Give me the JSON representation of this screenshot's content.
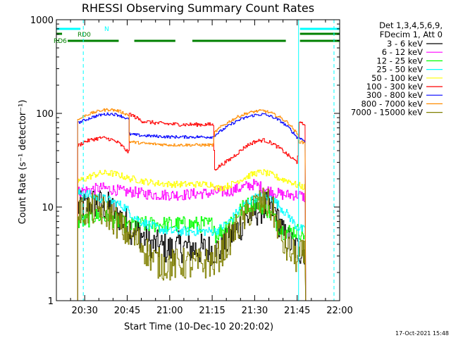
{
  "chart_data": {
    "type": "line",
    "title": "RHESSI Observing Summary Count Rates",
    "xlabel": "Start Time (10-Dec-10 20:20:02)",
    "ylabel": "Count Rate (s⁻¹ detector⁻¹)",
    "yscale": "log",
    "ylim": [
      1,
      1000
    ],
    "xlim_minutes": [
      0,
      100
    ],
    "x_ticks": [
      {
        "label": "20:30",
        "minute": 10
      },
      {
        "label": "20:45",
        "minute": 25
      },
      {
        "label": "21:00",
        "minute": 40
      },
      {
        "label": "21:15",
        "minute": 55
      },
      {
        "label": "21:30",
        "minute": 70
      },
      {
        "label": "21:45",
        "minute": 85
      },
      {
        "label": "22:00",
        "minute": 100
      }
    ],
    "y_ticks": [
      {
        "label": "1",
        "value": 1
      },
      {
        "label": "10",
        "value": 10
      },
      {
        "label": "100",
        "value": 100
      },
      {
        "label": "1000",
        "value": 1000
      }
    ],
    "legend_header": [
      "Det 1,3,4,5,6,9,",
      "FDecim 1, Att 0"
    ],
    "legend_position": "right",
    "series": [
      {
        "name": "3 - 6 keV",
        "color": "#000000",
        "x": [
          7.5,
          10,
          13,
          16,
          18,
          20,
          22,
          24,
          26,
          28,
          30,
          33,
          36,
          40,
          44,
          48,
          52,
          55.5,
          58,
          62,
          66,
          70,
          73,
          75,
          77,
          78,
          80,
          83,
          85,
          85.6,
          88
        ],
        "y": [
          10,
          10,
          11,
          10.5,
          10,
          9,
          8,
          7,
          6,
          5.5,
          5,
          4,
          3.8,
          3.5,
          3.8,
          3.6,
          3.5,
          3.5,
          3.5,
          5,
          7,
          9,
          10,
          10,
          9,
          8,
          5,
          4,
          3.5,
          3.5,
          3.5
        ],
        "noise": 0.35
      },
      {
        "name": "6 - 12 keV",
        "color": "#ff00ff",
        "x": [
          7.5,
          10,
          13,
          16,
          19,
          22,
          24,
          25.5,
          27,
          30,
          35,
          40,
          45,
          50,
          55.5,
          56,
          60,
          65,
          68,
          70,
          72,
          75,
          78,
          80,
          82,
          85,
          85.6,
          88
        ],
        "y": [
          14.5,
          15,
          15.5,
          16,
          15.5,
          15,
          14.5,
          14.5,
          14.5,
          14,
          13.5,
          13.5,
          13.5,
          14,
          14,
          14.5,
          14.5,
          16,
          17,
          17.5,
          16.5,
          15,
          14,
          13.5,
          13.5,
          13.5,
          13.5,
          12.5
        ],
        "noise": 0.12
      },
      {
        "name": "12 - 25 keV",
        "color": "#00ff00",
        "x": [
          7.5,
          10,
          13,
          16,
          19,
          22,
          24,
          25.5,
          27,
          30,
          35,
          40,
          45,
          50,
          55.5,
          56,
          58,
          60,
          63,
          66,
          69,
          71,
          73,
          75,
          78,
          80,
          82,
          85,
          85.6,
          88
        ],
        "y": [
          7,
          7,
          8,
          8,
          7.5,
          7,
          6.5,
          6,
          6.5,
          6.5,
          6.5,
          6.5,
          6.5,
          6.5,
          6.5,
          5,
          5.5,
          6.5,
          8,
          10,
          11,
          11,
          10,
          9,
          6.5,
          5.5,
          5.5,
          5.5,
          5.5,
          5
        ],
        "noise": 0.18
      },
      {
        "name": "25 - 50 keV",
        "color": "#00ffff",
        "x": [
          7.5,
          10,
          13,
          15,
          18,
          21,
          24,
          25.5,
          27,
          30,
          35,
          40,
          45,
          50,
          55.5,
          56,
          58,
          61,
          64,
          67,
          70,
          73,
          76,
          79,
          82,
          85,
          85.6,
          88
        ],
        "y": [
          14,
          14,
          13,
          12.5,
          12,
          11,
          10,
          9,
          8,
          7,
          6,
          5.5,
          5.5,
          5.5,
          5.5,
          5.5,
          6,
          7,
          9,
          11,
          12.5,
          13,
          12.5,
          10,
          8,
          6,
          6,
          5.5
        ],
        "noise": 0.1
      },
      {
        "name": "50 - 100 keV",
        "color": "#ffff00",
        "x": [
          7.5,
          10,
          13,
          16,
          19,
          22,
          24,
          25.5,
          27,
          30,
          35,
          40,
          45,
          50,
          55.5,
          56,
          58,
          61,
          64,
          67,
          70,
          73,
          76,
          79,
          82,
          85,
          85.6,
          88
        ],
        "y": [
          19,
          20,
          22,
          23,
          23,
          22,
          21,
          20,
          20,
          19,
          18,
          17.5,
          17.5,
          17.5,
          17.5,
          16,
          16,
          17,
          19,
          21,
          23,
          23.5,
          22,
          20,
          19,
          17,
          17,
          16
        ],
        "noise": 0.07
      },
      {
        "name": "100 - 300 keV",
        "color": "#ff0000",
        "x": [
          7.5,
          10,
          13,
          16,
          19,
          22,
          24,
          25.5,
          25.6,
          30,
          35,
          40,
          45,
          50,
          55.5,
          55.6,
          58,
          61,
          64,
          67,
          70,
          73,
          76,
          79,
          82,
          85,
          85.6,
          88
        ],
        "y": [
          45,
          50,
          53,
          55,
          53,
          48,
          42,
          38,
          100,
          83,
          79,
          77,
          76,
          76,
          76,
          25,
          28,
          32,
          38,
          45,
          50,
          52,
          48,
          42,
          35,
          30,
          78,
          76
        ],
        "noise": 0.04
      },
      {
        "name": "300 - 800 keV",
        "color": "#0000ff",
        "x": [
          7.5,
          10,
          13,
          16,
          19,
          22,
          24,
          25.5,
          25.6,
          30,
          35,
          40,
          45,
          50,
          55.5,
          55.6,
          58,
          61,
          64,
          67,
          70,
          73,
          76,
          79,
          82,
          85,
          85.6,
          88
        ],
        "y": [
          79,
          85,
          92,
          97,
          99,
          96,
          90,
          86,
          60,
          58,
          57,
          56,
          56,
          56,
          56,
          58,
          65,
          75,
          84,
          91,
          96,
          98,
          92,
          83,
          70,
          55,
          55,
          50
        ],
        "noise": 0.03
      },
      {
        "name": "800 - 7000 keV",
        "color": "#ff8c00",
        "x": [
          7.5,
          10,
          13,
          16,
          19,
          22,
          24,
          25.5,
          25.6,
          30,
          35,
          40,
          45,
          50,
          55.5,
          55.6,
          58,
          61,
          64,
          67,
          70,
          73,
          76,
          79,
          82,
          85,
          85.6,
          88
        ],
        "y": [
          85,
          95,
          102,
          108,
          110,
          106,
          100,
          95,
          50,
          48,
          47,
          46,
          46,
          46,
          46,
          62,
          72,
          82,
          92,
          100,
          105,
          107,
          100,
          90,
          78,
          60,
          50,
          48
        ],
        "noise": 0.03
      },
      {
        "name": "7000 - 15000 keV",
        "color": "#808000",
        "x": [
          7.5,
          10,
          13,
          16,
          18,
          20,
          22,
          24,
          26,
          28,
          30,
          33,
          36,
          40,
          44,
          48,
          52,
          55.5,
          58,
          62,
          66,
          70,
          73,
          75,
          77,
          78,
          80,
          83,
          85,
          85.6,
          88
        ],
        "y": [
          9,
          9,
          9.5,
          9,
          8.5,
          7.5,
          6.5,
          5.5,
          5,
          4.5,
          4,
          3,
          2.5,
          2.4,
          2.5,
          2.4,
          2.5,
          2.6,
          3.2,
          5,
          7.5,
          10.5,
          11,
          10.5,
          8,
          6.5,
          4,
          3.2,
          2.8,
          3,
          3
        ],
        "noise": 0.35
      }
    ],
    "annotations": {
      "n_label": "N",
      "rd0_label": "RD0",
      "rd6_label": "RD6",
      "n_bars_minutes": [
        [
          0,
          8.5
        ],
        [
          86,
          100
        ]
      ],
      "rd0_bars_minutes": [
        [
          0,
          2
        ],
        [
          86,
          100
        ]
      ],
      "rd6_bars_minutes": [
        [
          4,
          22
        ],
        [
          27.5,
          42
        ],
        [
          48,
          81
        ],
        [
          86,
          100
        ]
      ],
      "vertical_lines_minutes": [
        0,
        85.5
      ],
      "vertical_dashed_minutes": [
        9.5,
        98
      ]
    },
    "annotation_colors": {
      "bar_n": "#00ffff",
      "bar_rd": "#008000",
      "vline": "#00ffff"
    }
  },
  "footer": {
    "timestamp": "17-Oct-2021 15:48"
  }
}
